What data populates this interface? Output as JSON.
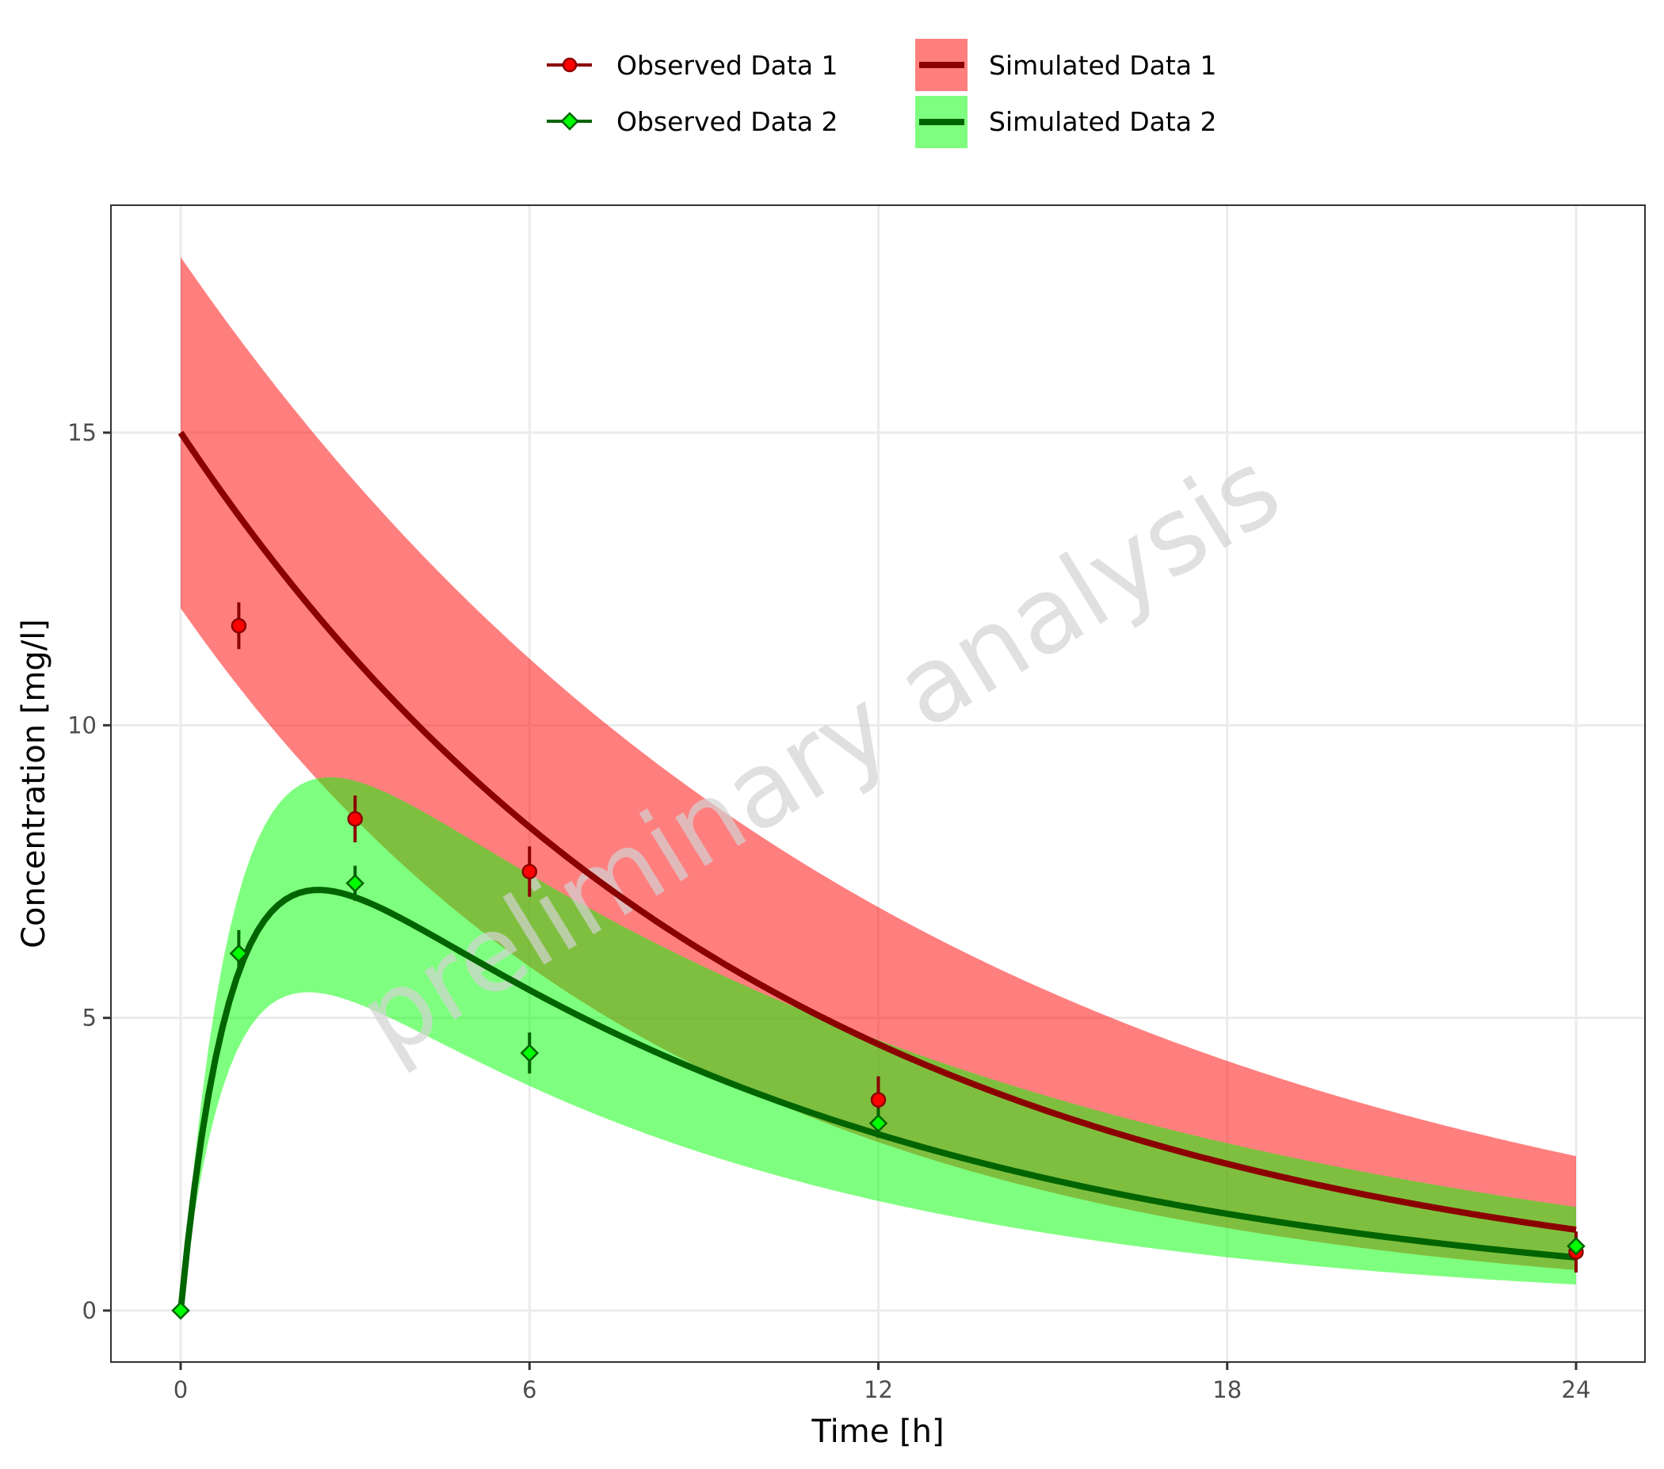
{
  "chart_data": {
    "type": "line",
    "title": "",
    "xlabel": "Time [h]",
    "ylabel": "Concentration [mg/l]",
    "xlim": [
      -1.2,
      25.0
    ],
    "ylim": [
      -0.9,
      19.6
    ],
    "x_ticks": [
      0,
      6,
      12,
      18,
      24
    ],
    "x_tick_labels": [
      "0",
      "6",
      "12",
      "18",
      "24"
    ],
    "y_ticks": [
      0,
      5,
      10,
      15
    ],
    "y_tick_labels": [
      "0",
      "5",
      "10",
      "15"
    ],
    "grid": true,
    "legend_position": "top",
    "watermark": "preliminary analysis",
    "observed": [
      {
        "name": "Observed Data 1",
        "marker": "circle",
        "fill": "#ff0000",
        "stroke": "#8b0000",
        "x": [
          1,
          3,
          6,
          12,
          24
        ],
        "y": [
          11.7,
          8.4,
          7.5,
          3.6,
          1.0
        ],
        "error": [
          0.4,
          0.4,
          0.43,
          0.4,
          0.35
        ]
      },
      {
        "name": "Observed Data 2",
        "marker": "diamond",
        "fill": "#00ff00",
        "stroke": "#006400",
        "x": [
          0,
          1,
          3,
          6,
          12,
          24
        ],
        "y": [
          0,
          6.1,
          7.3,
          4.4,
          3.2,
          1.1
        ],
        "error": [
          0,
          0.4,
          0.3,
          0.35,
          0.25,
          0.1
        ]
      }
    ],
    "simulated": [
      {
        "name": "Simulated Data 1",
        "line_color": "#8b0000",
        "band_color": "#ff0000",
        "band_opacity": 0.5,
        "model": "iv_bolus",
        "mean": {
          "dose_conc": 15.0,
          "ke": 0.0994
        },
        "lower": {
          "dose_conc": 12.0,
          "ke": 0.119
        },
        "upper": {
          "dose_conc": 18.0,
          "ke": 0.08
        },
        "x_range": [
          0,
          24
        ],
        "summary": {
          "t": [
            0,
            6,
            12,
            18,
            24
          ],
          "mean": [
            15.0,
            8.3,
            4.6,
            2.5,
            1.38
          ],
          "lower": [
            12.0,
            5.9,
            2.9,
            1.4,
            0.69
          ],
          "upper": [
            18.0,
            11.1,
            6.9,
            4.3,
            2.64
          ]
        }
      },
      {
        "name": "Simulated Data 2",
        "line_color": "#006400",
        "band_color": "#00ff00",
        "band_opacity": 0.5,
        "model": "oral_absorption",
        "mean": {
          "A": 10.0,
          "ka": 1.12,
          "ke": 0.1
        },
        "lower": {
          "A": 7.9,
          "ka": 1.15,
          "ke": 0.12
        },
        "upper": {
          "A": 12.07,
          "ka": 1.1,
          "ke": 0.08
        },
        "x_range": [
          0,
          24
        ],
        "summary": {
          "t": [
            0,
            2.4,
            6,
            12,
            24
          ],
          "mean": [
            0,
            7.16,
            5.5,
            3.0,
            0.91
          ],
          "lower": [
            0,
            5.44,
            3.9,
            1.9,
            0.44
          ],
          "upper": [
            0,
            9.0,
            7.4,
            4.6,
            1.77
          ]
        }
      }
    ]
  },
  "legend": {
    "items": [
      {
        "label": "Observed Data 1",
        "type": "observed",
        "series": 0
      },
      {
        "label": "Observed Data 2",
        "type": "observed",
        "series": 1
      },
      {
        "label": "Simulated Data 1",
        "type": "simulated",
        "series": 0
      },
      {
        "label": "Simulated Data 2",
        "type": "simulated",
        "series": 1
      }
    ]
  },
  "axes": {
    "x_title": "Time [h]",
    "y_title": "Concentration [mg/l]"
  }
}
